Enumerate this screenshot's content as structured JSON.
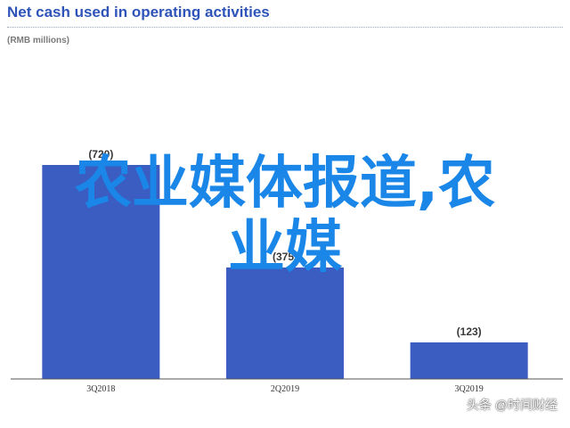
{
  "header": {
    "title": "Net cash used in operating activities",
    "subtitle": "(RMB millions)"
  },
  "overlay": {
    "line1": "农业媒体报道,农",
    "line2": "业媒"
  },
  "watermark": "头条 @时间财经",
  "colors": {
    "bar": "#3b5cc0",
    "title": "#2e54b9",
    "overlay_text": "#1a86e8"
  },
  "chart_data": {
    "type": "bar",
    "title": "Net cash used in operating activities",
    "subtitle": "(RMB millions)",
    "categories": [
      "3Q2018",
      "2Q2019",
      "3Q2019"
    ],
    "values": [
      -720,
      -375,
      -123
    ],
    "data_labels": [
      "(720)",
      "(375)",
      "(123)"
    ],
    "xlabel": "",
    "ylabel": "",
    "ylim": [
      -800,
      0
    ],
    "grid": false,
    "legend": "none"
  }
}
